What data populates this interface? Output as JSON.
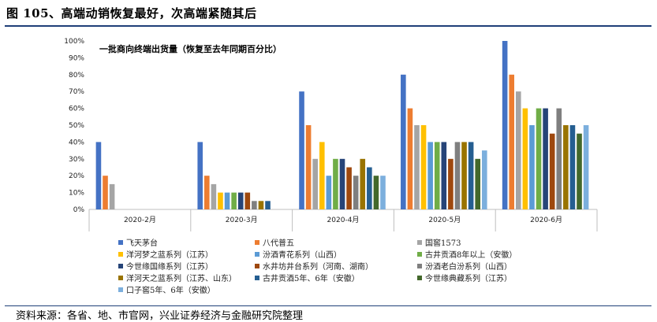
{
  "header": {
    "title": "图 105、高端动销恢复最好，次高端紧随其后"
  },
  "footer": {
    "source": "资料来源：各省、地、市官网，兴业证券经济与金融研究院整理"
  },
  "chart_data": {
    "type": "bar",
    "title": "一批商向终端出货量（恢复至去年同期百分比）",
    "categories": [
      "2020-2月",
      "2020-3月",
      "2020-4月",
      "2020-5月",
      "2020-6月"
    ],
    "ylim": [
      0,
      100
    ],
    "yticks": [
      "0%",
      "10%",
      "20%",
      "30%",
      "40%",
      "50%",
      "60%",
      "70%",
      "80%",
      "90%",
      "100%"
    ],
    "grid": false,
    "legend_position": "bottom",
    "series": [
      {
        "name": "飞天茅台",
        "color": "#4472C4",
        "values": [
          40,
          40,
          70,
          80,
          100
        ]
      },
      {
        "name": "八代普五",
        "color": "#ED7D31",
        "values": [
          20,
          20,
          50,
          60,
          80
        ]
      },
      {
        "name": "国窖1573",
        "color": "#A5A5A5",
        "values": [
          15,
          15,
          30,
          50,
          70
        ]
      },
      {
        "name": "洋河梦之蓝系列（江苏）",
        "color": "#FFC000",
        "values": [
          0,
          10,
          40,
          50,
          60
        ]
      },
      {
        "name": "汾酒青花系列（山西）",
        "color": "#5B9BD5",
        "values": [
          0,
          10,
          20,
          40,
          50
        ]
      },
      {
        "name": "古井贡酒8年以上（安徽）",
        "color": "#70AD47",
        "values": [
          0,
          10,
          30,
          40,
          60
        ]
      },
      {
        "name": "今世缘国缘系列（江苏）",
        "color": "#264478",
        "values": [
          0,
          10,
          30,
          40,
          60
        ]
      },
      {
        "name": "水井坊井台系列（河南、湖南）",
        "color": "#9E480E",
        "values": [
          0,
          10,
          25,
          30,
          45
        ]
      },
      {
        "name": "汾酒老白汾系列（山西）",
        "color": "#7F7F7F",
        "values": [
          0,
          5,
          20,
          40,
          60
        ]
      },
      {
        "name": "洋河天之蓝系列（江苏、山东）",
        "color": "#997300",
        "values": [
          0,
          5,
          30,
          40,
          50
        ]
      },
      {
        "name": "古井贡酒5年、6年（安徽）",
        "color": "#255E91",
        "values": [
          0,
          5,
          25,
          40,
          50
        ]
      },
      {
        "name": "今世缘典藏系列（江苏）",
        "color": "#43682B",
        "values": [
          0,
          0,
          20,
          30,
          45
        ]
      },
      {
        "name": "口子窖5年、6年（安徽）",
        "color": "#7CAFDD",
        "values": [
          0,
          0,
          20,
          35,
          50
        ]
      }
    ]
  }
}
